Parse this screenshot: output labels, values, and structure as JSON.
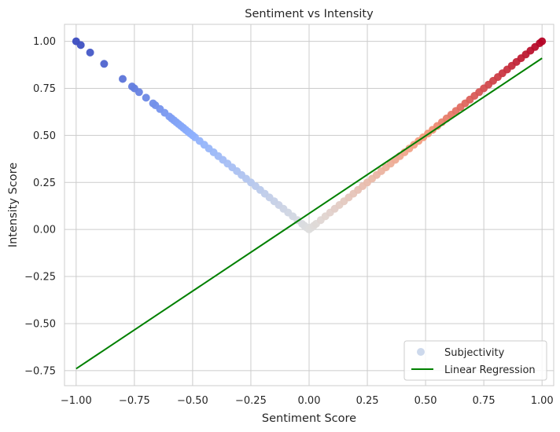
{
  "chart_data": {
    "type": "scatter",
    "title": "Sentiment vs Intensity",
    "xlabel": "Sentiment Score",
    "ylabel": "Intensity Score",
    "xlim": [
      -1.05,
      1.05
    ],
    "ylim": [
      -0.83,
      1.09
    ],
    "x_ticks": [
      -1.0,
      -0.75,
      -0.5,
      -0.25,
      0.0,
      0.25,
      0.5,
      0.75,
      1.0
    ],
    "x_tick_labels": [
      "−1.00",
      "−0.75",
      "−0.50",
      "−0.25",
      "0.00",
      "0.25",
      "0.50",
      "0.75",
      "1.00"
    ],
    "y_ticks": [
      -0.75,
      -0.5,
      -0.25,
      0.0,
      0.25,
      0.5,
      0.75,
      1.0
    ],
    "y_tick_labels": [
      "−0.75",
      "−0.50",
      "−0.25",
      "0.00",
      "0.25",
      "0.50",
      "0.75",
      "1.00"
    ],
    "grid": true,
    "legend_position": "bottom-right",
    "series": [
      {
        "name": "Subjectivity",
        "kind": "scatter",
        "colormap": "coolwarm",
        "relation": "intensity = |sentiment|",
        "x": [
          -1.0,
          -0.98,
          -0.94,
          -0.88,
          -0.8,
          -0.76,
          -0.75,
          -0.73,
          -0.7,
          -0.67,
          -0.66,
          -0.64,
          -0.62,
          -0.6,
          -0.59,
          -0.58,
          -0.57,
          -0.56,
          -0.55,
          -0.54,
          -0.53,
          -0.52,
          -0.51,
          -0.5,
          -0.49,
          -0.47,
          -0.45,
          -0.43,
          -0.41,
          -0.39,
          -0.37,
          -0.35,
          -0.33,
          -0.31,
          -0.29,
          -0.27,
          -0.25,
          -0.23,
          -0.21,
          -0.19,
          -0.17,
          -0.15,
          -0.13,
          -0.11,
          -0.09,
          -0.07,
          -0.05,
          -0.03,
          -0.02,
          -0.01,
          0.0,
          0.01,
          0.02,
          0.03,
          0.05,
          0.07,
          0.09,
          0.11,
          0.13,
          0.15,
          0.17,
          0.19,
          0.21,
          0.23,
          0.25,
          0.27,
          0.29,
          0.31,
          0.33,
          0.35,
          0.37,
          0.39,
          0.41,
          0.43,
          0.45,
          0.47,
          0.49,
          0.51,
          0.53,
          0.55,
          0.57,
          0.59,
          0.61,
          0.63,
          0.65,
          0.67,
          0.69,
          0.71,
          0.73,
          0.75,
          0.77,
          0.79,
          0.81,
          0.83,
          0.85,
          0.87,
          0.89,
          0.91,
          0.93,
          0.95,
          0.97,
          0.99,
          1.0
        ],
        "y": [
          1.0,
          0.98,
          0.94,
          0.88,
          0.8,
          0.76,
          0.75,
          0.73,
          0.7,
          0.67,
          0.66,
          0.64,
          0.62,
          0.6,
          0.59,
          0.58,
          0.57,
          0.56,
          0.55,
          0.54,
          0.53,
          0.52,
          0.51,
          0.5,
          0.49,
          0.47,
          0.45,
          0.43,
          0.41,
          0.39,
          0.37,
          0.35,
          0.33,
          0.31,
          0.29,
          0.27,
          0.25,
          0.23,
          0.21,
          0.19,
          0.17,
          0.15,
          0.13,
          0.11,
          0.09,
          0.07,
          0.05,
          0.03,
          0.02,
          0.01,
          0.0,
          0.01,
          0.02,
          0.03,
          0.05,
          0.07,
          0.09,
          0.11,
          0.13,
          0.15,
          0.17,
          0.19,
          0.21,
          0.23,
          0.25,
          0.27,
          0.29,
          0.31,
          0.33,
          0.35,
          0.37,
          0.39,
          0.41,
          0.43,
          0.45,
          0.47,
          0.49,
          0.51,
          0.53,
          0.55,
          0.57,
          0.59,
          0.61,
          0.63,
          0.65,
          0.67,
          0.69,
          0.71,
          0.73,
          0.75,
          0.77,
          0.79,
          0.81,
          0.83,
          0.85,
          0.87,
          0.89,
          0.91,
          0.93,
          0.95,
          0.97,
          0.99,
          1.0
        ]
      },
      {
        "name": "Linear Regression",
        "kind": "line",
        "color": "#008000",
        "x": [
          -1.0,
          1.0
        ],
        "y": [
          -0.74,
          0.91
        ]
      }
    ]
  }
}
